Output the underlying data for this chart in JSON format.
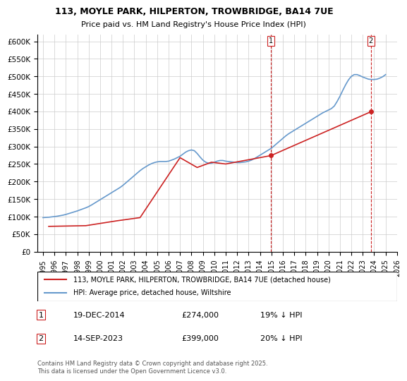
{
  "title": "113, MOYLE PARK, HILPERTON, TROWBRIDGE, BA14 7UE",
  "subtitle": "Price paid vs. HM Land Registry's House Price Index (HPI)",
  "xlabel": "",
  "ylabel": "",
  "ylim": [
    0,
    620000
  ],
  "xlim": [
    1995,
    2026
  ],
  "yticks": [
    0,
    50000,
    100000,
    150000,
    200000,
    250000,
    300000,
    350000,
    400000,
    450000,
    500000,
    550000,
    600000
  ],
  "ytick_labels": [
    "£0",
    "£50K",
    "£100K",
    "£150K",
    "£200K",
    "£250K",
    "£300K",
    "£350K",
    "£400K",
    "£450K",
    "£500K",
    "£550K",
    "£600K"
  ],
  "xticks": [
    1995,
    1996,
    1997,
    1998,
    1999,
    2000,
    2001,
    2002,
    2003,
    2004,
    2005,
    2006,
    2007,
    2008,
    2009,
    2010,
    2011,
    2012,
    2013,
    2014,
    2015,
    2016,
    2017,
    2018,
    2019,
    2020,
    2021,
    2022,
    2023,
    2024,
    2025,
    2026
  ],
  "hpi_color": "#6699cc",
  "price_color": "#cc2222",
  "vline_color": "#cc2222",
  "grid_color": "#cccccc",
  "background_color": "#ffffff",
  "sale1_year": 2014.97,
  "sale1_price": 274000,
  "sale2_year": 2023.71,
  "sale2_price": 399000,
  "legend_property": "113, MOYLE PARK, HILPERTON, TROWBRIDGE, BA14 7UE (detached house)",
  "legend_hpi": "HPI: Average price, detached house, Wiltshire",
  "footnote": "Contains HM Land Registry data © Crown copyright and database right 2025.\nThis data is licensed under the Open Government Licence v3.0.",
  "annotation1_label": "1",
  "annotation1_text": "19-DEC-2014     £274,000     19% ↓ HPI",
  "annotation2_label": "2",
  "annotation2_text": "14-SEP-2023     £399,000     20% ↓ HPI",
  "hpi_x": [
    1995.0,
    1995.25,
    1995.5,
    1995.75,
    1996.0,
    1996.25,
    1996.5,
    1996.75,
    1997.0,
    1997.25,
    1997.5,
    1997.75,
    1998.0,
    1998.25,
    1998.5,
    1998.75,
    1999.0,
    1999.25,
    1999.5,
    1999.75,
    2000.0,
    2000.25,
    2000.5,
    2000.75,
    2001.0,
    2001.25,
    2001.5,
    2001.75,
    2002.0,
    2002.25,
    2002.5,
    2002.75,
    2003.0,
    2003.25,
    2003.5,
    2003.75,
    2004.0,
    2004.25,
    2004.5,
    2004.75,
    2005.0,
    2005.25,
    2005.5,
    2005.75,
    2006.0,
    2006.25,
    2006.5,
    2006.75,
    2007.0,
    2007.25,
    2007.5,
    2007.75,
    2008.0,
    2008.25,
    2008.5,
    2008.75,
    2009.0,
    2009.25,
    2009.5,
    2009.75,
    2010.0,
    2010.25,
    2010.5,
    2010.75,
    2011.0,
    2011.25,
    2011.5,
    2011.75,
    2012.0,
    2012.25,
    2012.5,
    2012.75,
    2013.0,
    2013.25,
    2013.5,
    2013.75,
    2014.0,
    2014.25,
    2014.5,
    2014.75,
    2015.0,
    2015.25,
    2015.5,
    2015.75,
    2016.0,
    2016.25,
    2016.5,
    2016.75,
    2017.0,
    2017.25,
    2017.5,
    2017.75,
    2018.0,
    2018.25,
    2018.5,
    2018.75,
    2019.0,
    2019.25,
    2019.5,
    2019.75,
    2020.0,
    2020.25,
    2020.5,
    2020.75,
    2021.0,
    2021.25,
    2021.5,
    2021.75,
    2022.0,
    2022.25,
    2022.5,
    2022.75,
    2023.0,
    2023.25,
    2023.5,
    2023.75,
    2024.0,
    2024.25,
    2024.5,
    2024.75,
    2025.0
  ],
  "hpi_y": [
    97000,
    97500,
    98000,
    99000,
    100000,
    101000,
    102500,
    104000,
    106000,
    108500,
    111000,
    113500,
    116000,
    119000,
    122000,
    125000,
    128500,
    133000,
    138000,
    143000,
    148000,
    153000,
    158000,
    163000,
    168000,
    173000,
    178000,
    183000,
    189000,
    196000,
    203000,
    210000,
    217000,
    224000,
    231000,
    237000,
    242000,
    247000,
    251000,
    254000,
    256000,
    257000,
    257000,
    257000,
    258000,
    261000,
    264000,
    268000,
    272000,
    278000,
    284000,
    288000,
    290000,
    288000,
    280000,
    270000,
    261000,
    255000,
    252000,
    252000,
    255000,
    258000,
    260000,
    260000,
    258000,
    257000,
    256000,
    255000,
    254000,
    254000,
    255000,
    256000,
    258000,
    261000,
    265000,
    270000,
    275000,
    280000,
    285000,
    290000,
    295000,
    302000,
    309000,
    316000,
    323000,
    330000,
    336000,
    341000,
    346000,
    351000,
    356000,
    361000,
    366000,
    371000,
    376000,
    381000,
    386000,
    391000,
    396000,
    400000,
    404000,
    408000,
    415000,
    428000,
    443000,
    460000,
    476000,
    490000,
    500000,
    505000,
    505000,
    502000,
    498000,
    495000,
    492000,
    491000,
    491000,
    492000,
    495000,
    499000,
    505000
  ],
  "price_x": [
    1995.5,
    1998.75,
    2001.5,
    2003.5,
    2007.0,
    2008.5,
    2009.75,
    2011.0,
    2014.97,
    2023.71
  ],
  "price_y": [
    72000,
    74000,
    88000,
    97000,
    268000,
    240000,
    255000,
    250000,
    274000,
    399000
  ]
}
